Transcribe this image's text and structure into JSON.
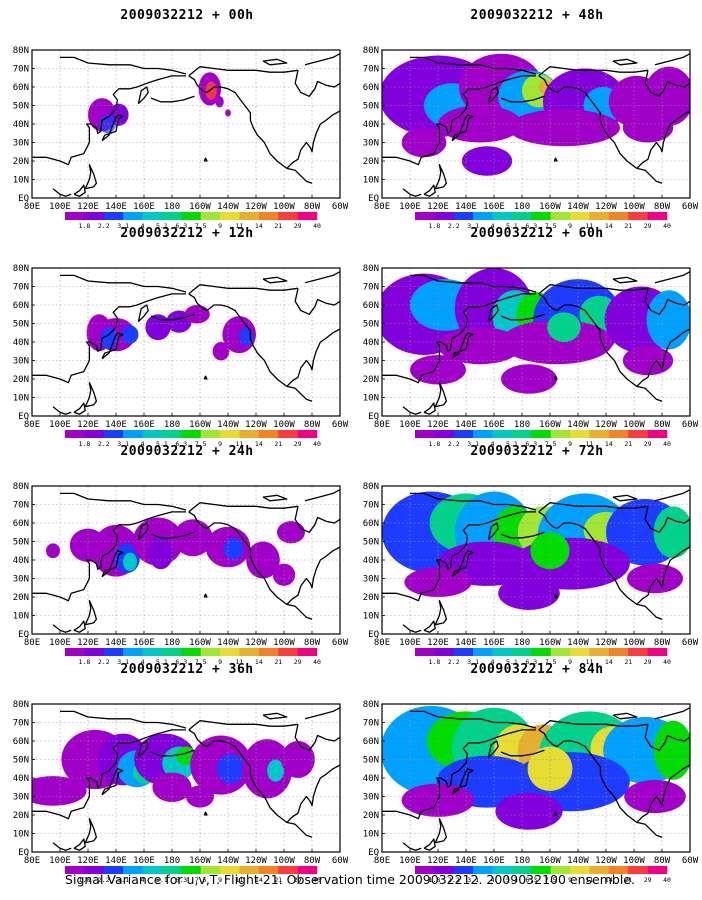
{
  "palette": [
    "#a000c8",
    "#8200dc",
    "#1e3cff",
    "#00a0ff",
    "#00c8c8",
    "#00d28c",
    "#00dc00",
    "#a0e632",
    "#e6dc32",
    "#e6af2d",
    "#f08228",
    "#fa3c3c",
    "#f00082"
  ],
  "colorbar_labels": [
    "1.8",
    "2.2",
    "3.1",
    "4",
    "5.1",
    "6.3",
    "7.5",
    "9",
    "11",
    "14",
    "21",
    "29",
    "40"
  ],
  "lat_labels": [
    "80N",
    "70N",
    "60N",
    "50N",
    "40N",
    "30N",
    "20N",
    "10N",
    "EQ"
  ],
  "lon_labels": [
    "80E",
    "100E",
    "120E",
    "140E",
    "160E",
    "180",
    "160W",
    "140W",
    "120W",
    "100W",
    "80W",
    "60W"
  ],
  "panels": [
    {
      "title": "2009032212 + 00h",
      "level": 0
    },
    {
      "title": "2009032212 + 12h",
      "level": 1
    },
    {
      "title": "2009032212 + 24h",
      "level": 2
    },
    {
      "title": "2009032212 + 36h",
      "level": 3
    },
    {
      "title": "2009032212 + 48h",
      "level": 4
    },
    {
      "title": "2009032212 + 60h",
      "level": 5
    },
    {
      "title": "2009032212 + 72h",
      "level": 6
    },
    {
      "title": "2009032212 + 84h",
      "level": 7
    }
  ],
  "footer": "Signal Variance for u,v,T. Flight 21. Observation time 2009032212. 2009032100 ensemble."
}
